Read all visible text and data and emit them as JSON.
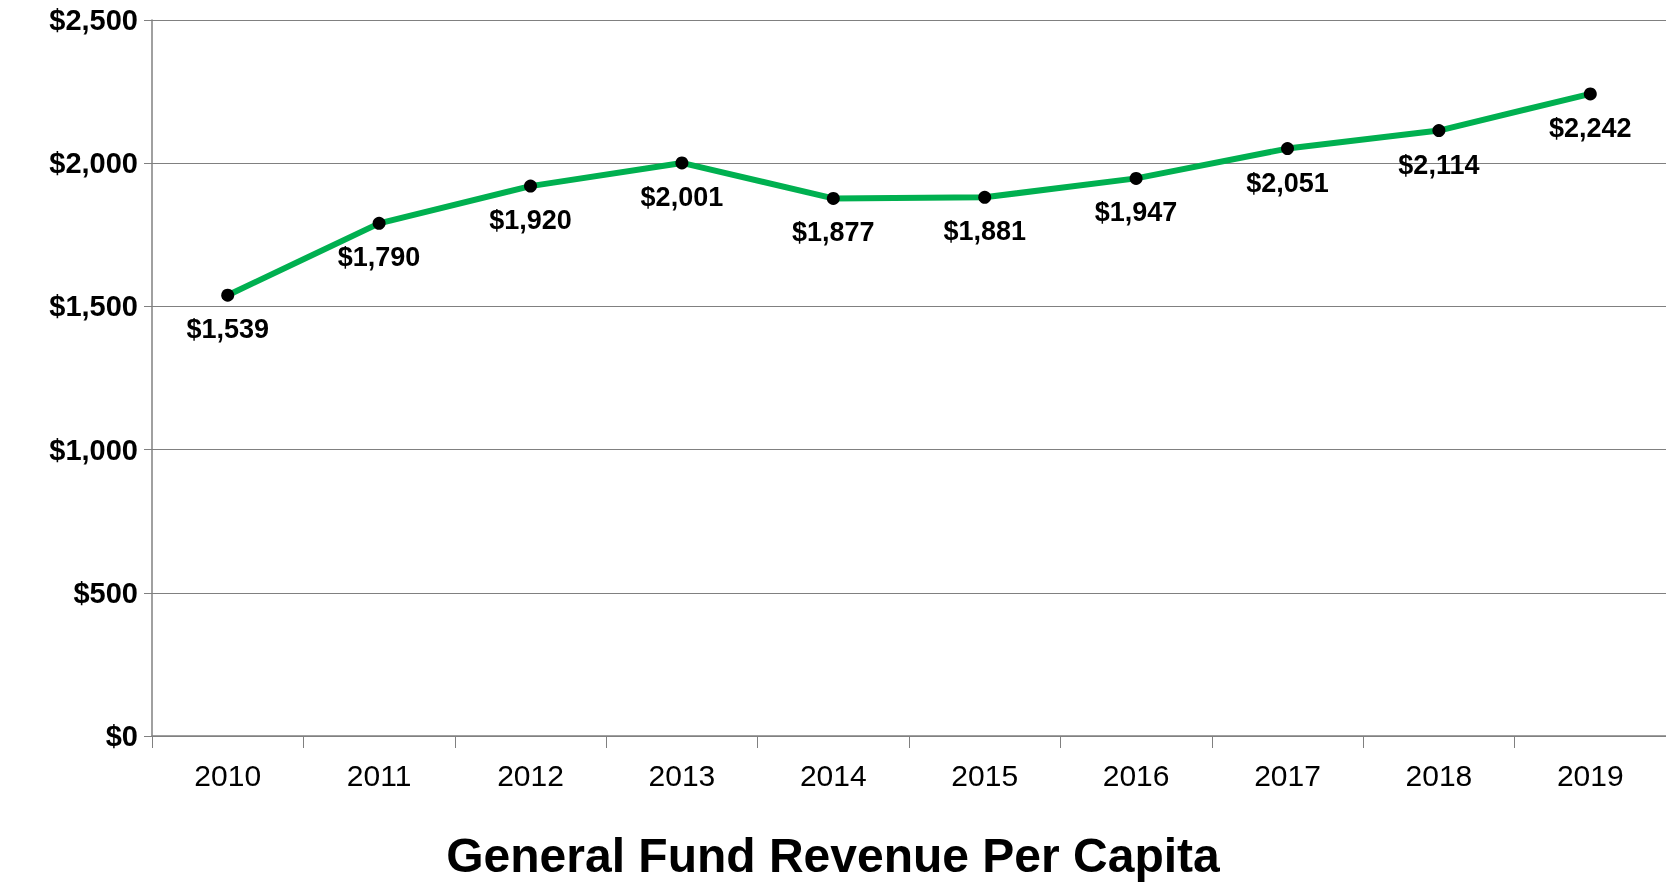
{
  "chart_data": {
    "type": "line",
    "title": "General Fund Revenue Per Capita",
    "categories": [
      "2010",
      "2011",
      "2012",
      "2013",
      "2014",
      "2015",
      "2016",
      "2017",
      "2018",
      "2019"
    ],
    "series": [
      {
        "color": "#00b050",
        "values": [
          1539,
          1790,
          1920,
          2001,
          1877,
          1881,
          1947,
          2051,
          2114,
          2242
        ],
        "value_labels": [
          "$1,539",
          "$1,790",
          "$1,920",
          "$2,001",
          "$1,877",
          "$1,881",
          "$1,947",
          "$2,051",
          "$2,114",
          "$2,242"
        ]
      }
    ],
    "ylim": [
      0,
      2500
    ],
    "yticks": [
      {
        "value": 0,
        "label": "$0"
      },
      {
        "value": 500,
        "label": "$500"
      },
      {
        "value": 1000,
        "label": "$1,000"
      },
      {
        "value": 1500,
        "label": "$1,500"
      },
      {
        "value": 2000,
        "label": "$2,000"
      },
      {
        "value": 2500,
        "label": "$2,500"
      }
    ],
    "grid": "y",
    "marker": "circle",
    "line_style": "solid"
  }
}
